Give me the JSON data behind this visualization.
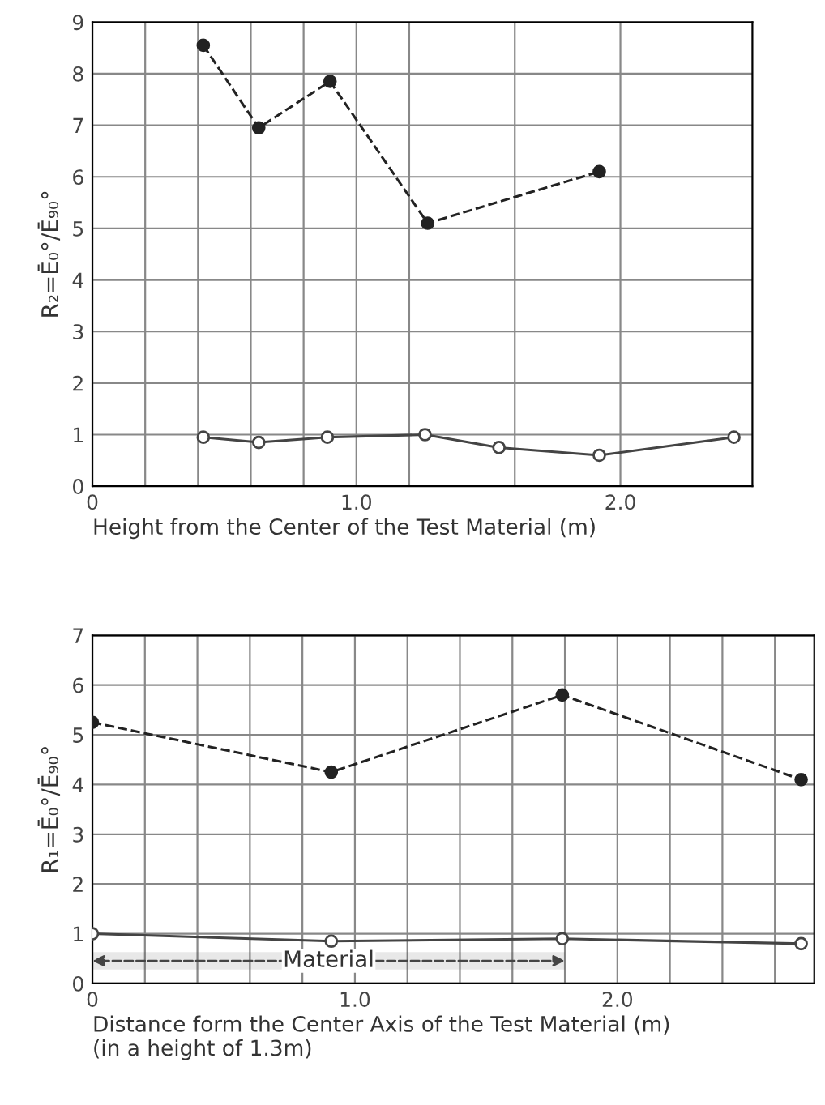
{
  "chart_data": [
    {
      "type": "line",
      "xlabel": "Height from the Center of the Test Material (m)",
      "ylabel": "R₂=Ē₀°/Ē₉₀°",
      "xlim": [
        0,
        2.5
      ],
      "ylim": [
        0,
        9
      ],
      "xticks": [
        0,
        {
          "value": 0.2,
          "label": null
        },
        {
          "value": 0.4,
          "label": null
        },
        {
          "value": 0.6,
          "label": null
        },
        {
          "value": 0.8,
          "label": null
        },
        {
          "value": 1.0,
          "label": "1.0"
        },
        {
          "value": 1.2,
          "label": null
        },
        {
          "value": 1.6,
          "label": null
        },
        {
          "value": 2.0,
          "label": "2.0"
        }
      ],
      "yticks": [
        0,
        1,
        2,
        3,
        4,
        5,
        6,
        7,
        8,
        9
      ],
      "grid": true,
      "marker": "circle",
      "series": [
        {
          "color": "#222222",
          "line_style": "dashed",
          "x": [
            0.42,
            0.63,
            0.9,
            1.27,
            1.92
          ],
          "values": [
            8.55,
            6.95,
            7.85,
            5.1,
            6.1
          ]
        },
        {
          "color": "#444444",
          "line_style": "solid",
          "x": [
            0.42,
            0.63,
            0.89,
            1.26,
            1.54,
            1.92,
            2.43
          ],
          "values": [
            0.95,
            0.85,
            0.95,
            1.0,
            0.75,
            0.6,
            0.95
          ]
        }
      ]
    },
    {
      "type": "line",
      "xlabel": "Distance form the Center Axis of the Test Material (m)\n(in a height of 1.3m)",
      "ylabel": "R₁=Ē₀°/Ē₉₀°",
      "xlim": [
        0,
        2.75
      ],
      "ylim": [
        0,
        7
      ],
      "xticks": [
        0,
        {
          "value": 0.2,
          "label": null
        },
        {
          "value": 0.4,
          "label": null
        },
        {
          "value": 0.6,
          "label": null
        },
        {
          "value": 0.8,
          "label": null
        },
        {
          "value": 1.0,
          "label": "1.0"
        },
        {
          "value": 1.2,
          "label": null
        },
        {
          "value": 1.4,
          "label": null
        },
        {
          "value": 1.6,
          "label": null
        },
        {
          "value": 1.8,
          "label": null
        },
        {
          "value": 2.0,
          "label": "2.0"
        },
        {
          "value": 2.2,
          "label": null
        },
        {
          "value": 2.4,
          "label": null
        },
        {
          "value": 2.6,
          "label": null
        }
      ],
      "yticks": [
        0,
        1,
        2,
        3,
        4,
        5,
        6,
        7
      ],
      "grid": true,
      "marker": "circle",
      "bands": [
        {
          "axis": "x",
          "from": 0,
          "to": 1.8,
          "label": "Material",
          "color": "#444444"
        }
      ],
      "series": [
        {
          "color": "#222222",
          "line_style": "dashed",
          "x": [
            0,
            0.91,
            1.79,
            2.7
          ],
          "values": [
            5.25,
            4.25,
            5.8,
            4.1
          ]
        },
        {
          "color": "#444444",
          "line_style": "solid",
          "x": [
            0,
            0.91,
            1.79,
            2.7
          ],
          "values": [
            1.0,
            0.85,
            0.9,
            0.8
          ]
        }
      ]
    }
  ]
}
